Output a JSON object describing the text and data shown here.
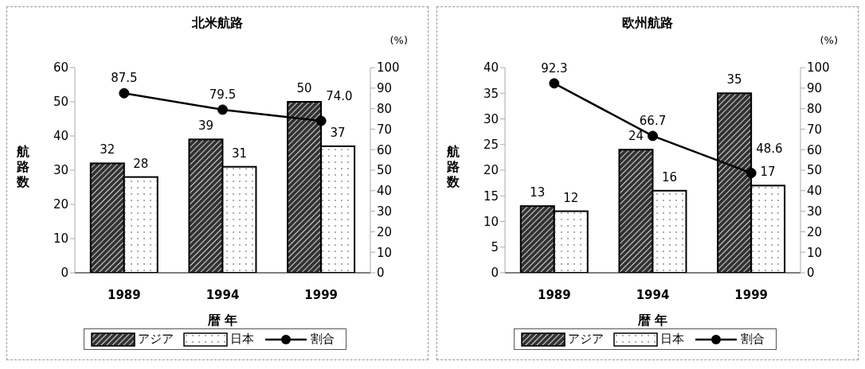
{
  "chart_data": [
    {
      "type": "bar",
      "title": "北米航路",
      "xlabel": "暦 年",
      "ylabel": "航路数",
      "y2label": "(%)",
      "categories": [
        "1989",
        "1994",
        "1999"
      ],
      "series": [
        {
          "name": "アジア",
          "color": "#333333",
          "values": [
            32,
            39,
            50
          ],
          "value_labels": [
            "32",
            "39",
            "50"
          ]
        },
        {
          "name": "日本",
          "color": "#ffffff",
          "values": [
            28,
            31,
            37
          ],
          "value_labels": [
            "28",
            "31",
            "37"
          ]
        },
        {
          "name": "割合",
          "type": "line",
          "axis": "y2",
          "color": "#000000",
          "values": [
            87.5,
            79.5,
            74.0
          ],
          "value_labels": [
            "87.5",
            "79.5",
            "74.0"
          ]
        }
      ],
      "ylim": [
        0,
        60
      ],
      "yticks": [
        0,
        10,
        20,
        30,
        40,
        50,
        60
      ],
      "y2lim": [
        0,
        100
      ],
      "y2ticks": [
        0,
        10,
        20,
        30,
        40,
        50,
        60,
        70,
        80,
        90,
        100
      ],
      "grid": false,
      "legend": "bottom",
      "marker": "circle",
      "line_style": "solid"
    },
    {
      "type": "bar",
      "title": "欧州航路",
      "xlabel": "暦 年",
      "ylabel": "航路数",
      "y2label": "(%)",
      "categories": [
        "1989",
        "1994",
        "1999"
      ],
      "series": [
        {
          "name": "アジア",
          "color": "#333333",
          "values": [
            13,
            24,
            35
          ],
          "value_labels": [
            "13",
            "24",
            "35"
          ]
        },
        {
          "name": "日本",
          "color": "#ffffff",
          "values": [
            12,
            16,
            17
          ],
          "value_labels": [
            "12",
            "16",
            "17"
          ]
        },
        {
          "name": "割合",
          "type": "line",
          "axis": "y2",
          "color": "#000000",
          "values": [
            92.3,
            66.7,
            48.6
          ],
          "value_labels": [
            "92.3",
            "66.7",
            "48.6"
          ]
        }
      ],
      "ylim": [
        0,
        40
      ],
      "yticks": [
        0,
        5,
        10,
        15,
        20,
        25,
        30,
        35,
        40
      ],
      "y2lim": [
        0,
        100
      ],
      "y2ticks": [
        0,
        10,
        20,
        30,
        40,
        50,
        60,
        70,
        80,
        90,
        100
      ],
      "grid": false,
      "legend": "bottom",
      "marker": "circle",
      "line_style": "solid"
    }
  ]
}
